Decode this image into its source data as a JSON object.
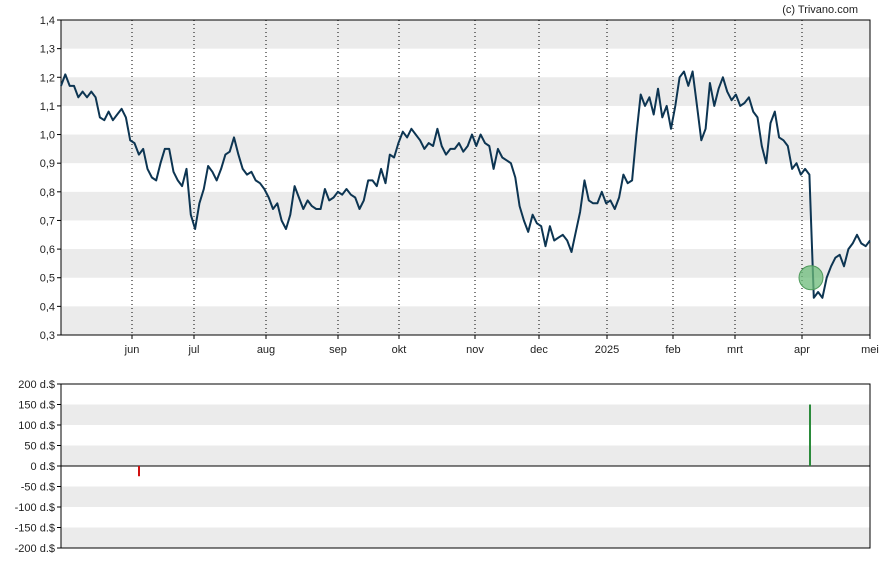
{
  "credit": "(c) Trivano.com",
  "colors": {
    "band": "#ebebeb",
    "line": "#0d3552",
    "marker": "#6cbb7a",
    "bar_up": "#2a8a3a",
    "bar_down": "#d01010",
    "grid": "#000000"
  },
  "chart_data": [
    {
      "type": "line",
      "title": "",
      "y_ticks": [
        "1,4",
        "1,3",
        "1,2",
        "1,1",
        "1,0",
        "0,9",
        "0,8",
        "0,7",
        "0,6",
        "0,5",
        "0,4",
        "0,3"
      ],
      "ylim": [
        0.3,
        1.4
      ],
      "x_ticks": [
        "jun",
        "jul",
        "aug",
        "sep",
        "okt",
        "nov",
        "dec",
        "2025",
        "feb",
        "mrt",
        "apr",
        "mei"
      ],
      "grid": "vertical dotted at month ticks, alternating horizontal bands",
      "series": [
        {
          "y": [
            1.17,
            1.21,
            1.17,
            1.17,
            1.13,
            1.15,
            1.13,
            1.15,
            1.13,
            1.06,
            1.05,
            1.08,
            1.05,
            1.07,
            1.09,
            1.06,
            0.98,
            0.97,
            0.93,
            0.95,
            0.88,
            0.85,
            0.84,
            0.9,
            0.95,
            0.95,
            0.87,
            0.84,
            0.82,
            0.88,
            0.72,
            0.67,
            0.76,
            0.81,
            0.89,
            0.87,
            0.84,
            0.88,
            0.93,
            0.94,
            0.99,
            0.93,
            0.88,
            0.86,
            0.87,
            0.84,
            0.83,
            0.81,
            0.78,
            0.74,
            0.76,
            0.7,
            0.67,
            0.72,
            0.82,
            0.78,
            0.74,
            0.77,
            0.75,
            0.74,
            0.74,
            0.81,
            0.77,
            0.78,
            0.8,
            0.79,
            0.81,
            0.79,
            0.78,
            0.74,
            0.77,
            0.84,
            0.84,
            0.82,
            0.88,
            0.83,
            0.93,
            0.92,
            0.97,
            1.01,
            0.99,
            1.02,
            1.0,
            0.98,
            0.95,
            0.97,
            0.96,
            1.02,
            0.96,
            0.93,
            0.95,
            0.95,
            0.97,
            0.94,
            0.96,
            1.0,
            0.96,
            1.0,
            0.97,
            0.96,
            0.88,
            0.95,
            0.92,
            0.91,
            0.9,
            0.85,
            0.75,
            0.7,
            0.66,
            0.72,
            0.69,
            0.68,
            0.61,
            0.68,
            0.63,
            0.64,
            0.65,
            0.63,
            0.59,
            0.66,
            0.73,
            0.84,
            0.77,
            0.76,
            0.76,
            0.8,
            0.76,
            0.77,
            0.74,
            0.78,
            0.86,
            0.83,
            0.84,
            1.0,
            1.14,
            1.1,
            1.13,
            1.07,
            1.16,
            1.06,
            1.1,
            1.02,
            1.1,
            1.2,
            1.22,
            1.17,
            1.22,
            1.1,
            0.98,
            1.02,
            1.18,
            1.1,
            1.16,
            1.2,
            1.15,
            1.12,
            1.14,
            1.1,
            1.11,
            1.13,
            1.08,
            1.06,
            0.96,
            0.9,
            1.04,
            1.08,
            0.99,
            0.98,
            0.96,
            0.88,
            0.9,
            0.86,
            0.88,
            0.86,
            0.43,
            0.45,
            0.43,
            0.5,
            0.54,
            0.57,
            0.58,
            0.54,
            0.6,
            0.62,
            0.65,
            0.62,
            0.61,
            0.63
          ]
        }
      ],
      "marker_value": 0.5
    },
    {
      "type": "bar",
      "title": "",
      "y_ticks": [
        "200 d.$",
        "150 d.$",
        "100 d.$",
        "50 d.$",
        "0 d.$",
        "-50 d.$",
        "-100 d.$",
        "-150 d.$",
        "-200 d.$"
      ],
      "ylim": [
        -200,
        200
      ],
      "bars": [
        {
          "position": "jun",
          "value": -25
        },
        {
          "position": "apr",
          "value": 150
        }
      ]
    }
  ]
}
